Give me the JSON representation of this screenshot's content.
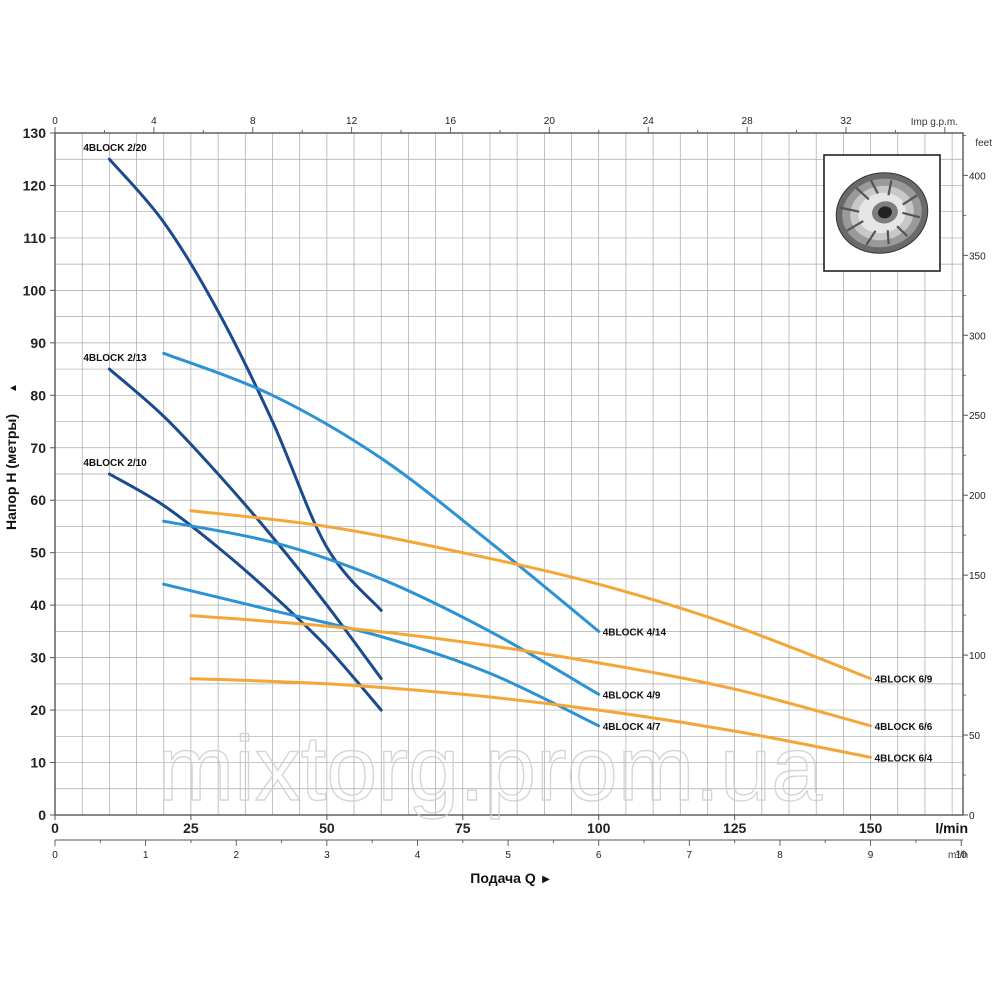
{
  "chart_data": {
    "type": "line",
    "ylabel": "Напор H (метры)",
    "ylabel_arrow": "▲",
    "xlabel": "Подача Q",
    "xlabel_arrow": "▶",
    "x_unit_primary": "l/min",
    "x_unit_m3h": "m³/h",
    "x_unit_top": "Imp g.p.m.",
    "y_unit_right": "feet",
    "watermark": "mixtorg.prom.ua",
    "xlim": [
      0,
      167
    ],
    "ylim": [
      0,
      130
    ],
    "grid": true,
    "colors": {
      "dark_blue": "#1b4b8c",
      "light_blue": "#2b93d4",
      "orange": "#f5a638",
      "grid": "#a8a8a8",
      "frame": "#555555"
    },
    "axes": {
      "y_left_ticks": [
        0,
        10,
        20,
        30,
        40,
        50,
        60,
        70,
        80,
        90,
        100,
        110,
        120,
        130
      ],
      "x_lmin_ticks": [
        0,
        25,
        50,
        75,
        100,
        125,
        150
      ],
      "x_m3h_ticks": [
        0,
        1,
        2,
        3,
        4,
        5,
        6,
        7,
        8,
        9,
        10
      ],
      "x_impgpm_ticks": [
        0,
        4,
        8,
        12,
        16,
        20,
        24,
        28,
        32
      ],
      "y_feet_ticks": [
        0,
        50,
        100,
        150,
        200,
        250,
        300,
        350,
        400
      ]
    },
    "series": [
      {
        "name": "4BLOCK 2/20",
        "color": "dark_blue",
        "label_pos": "start",
        "x": [
          10,
          20,
          30,
          40,
          50,
          60
        ],
        "y": [
          125,
          113,
          96,
          75,
          51,
          39
        ]
      },
      {
        "name": "4BLOCK 2/13",
        "color": "dark_blue",
        "label_pos": "start",
        "x": [
          10,
          20,
          30,
          40,
          50,
          60
        ],
        "y": [
          85,
          76,
          65,
          53,
          40,
          26
        ]
      },
      {
        "name": "4BLOCK 2/10",
        "color": "dark_blue",
        "label_pos": "start",
        "x": [
          10,
          20,
          30,
          40,
          50,
          60
        ],
        "y": [
          65,
          59,
          51,
          42,
          32,
          20
        ]
      },
      {
        "name": "4BLOCK 4/14",
        "color": "light_blue",
        "label_pos": "end",
        "x": [
          20,
          40,
          60,
          80,
          100
        ],
        "y": [
          88,
          80,
          68,
          52,
          35
        ]
      },
      {
        "name": "4BLOCK 4/9",
        "color": "light_blue",
        "label_pos": "end",
        "x": [
          20,
          40,
          60,
          80,
          100
        ],
        "y": [
          56,
          52,
          45,
          35,
          23
        ]
      },
      {
        "name": "4BLOCK 4/7",
        "color": "light_blue",
        "label_pos": "end",
        "x": [
          20,
          40,
          60,
          80,
          100
        ],
        "y": [
          44,
          39,
          34,
          27,
          17
        ]
      },
      {
        "name": "4BLOCK 6/9",
        "color": "orange",
        "label_pos": "end",
        "x": [
          25,
          50,
          75,
          100,
          125,
          150
        ],
        "y": [
          58,
          55,
          50,
          44,
          36,
          26
        ]
      },
      {
        "name": "4BLOCK 6/6",
        "color": "orange",
        "label_pos": "end",
        "x": [
          25,
          50,
          75,
          100,
          125,
          150
        ],
        "y": [
          38,
          36,
          33,
          29,
          24,
          17
        ]
      },
      {
        "name": "4BLOCK 6/4",
        "color": "orange",
        "label_pos": "end",
        "x": [
          25,
          50,
          75,
          100,
          125,
          150
        ],
        "y": [
          26,
          25,
          23,
          20,
          16,
          11
        ]
      }
    ]
  }
}
